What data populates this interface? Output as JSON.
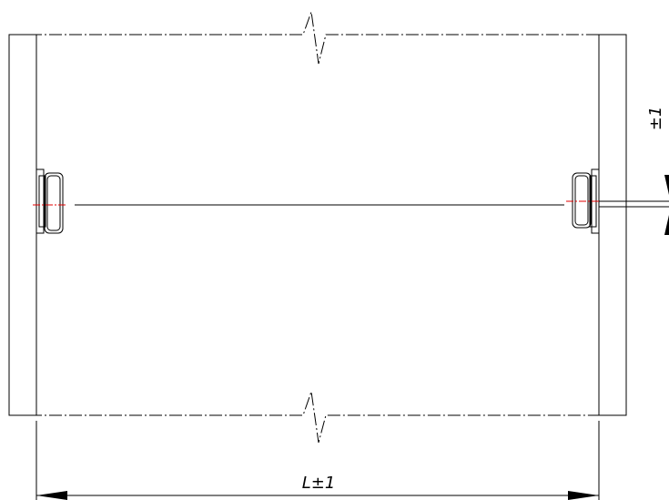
{
  "drawing": {
    "dim_bottom_label": "L±1",
    "dim_right_label": "±1",
    "colors": {
      "line": "#000000",
      "centerline": "#e00000",
      "background": "#ffffff"
    }
  }
}
